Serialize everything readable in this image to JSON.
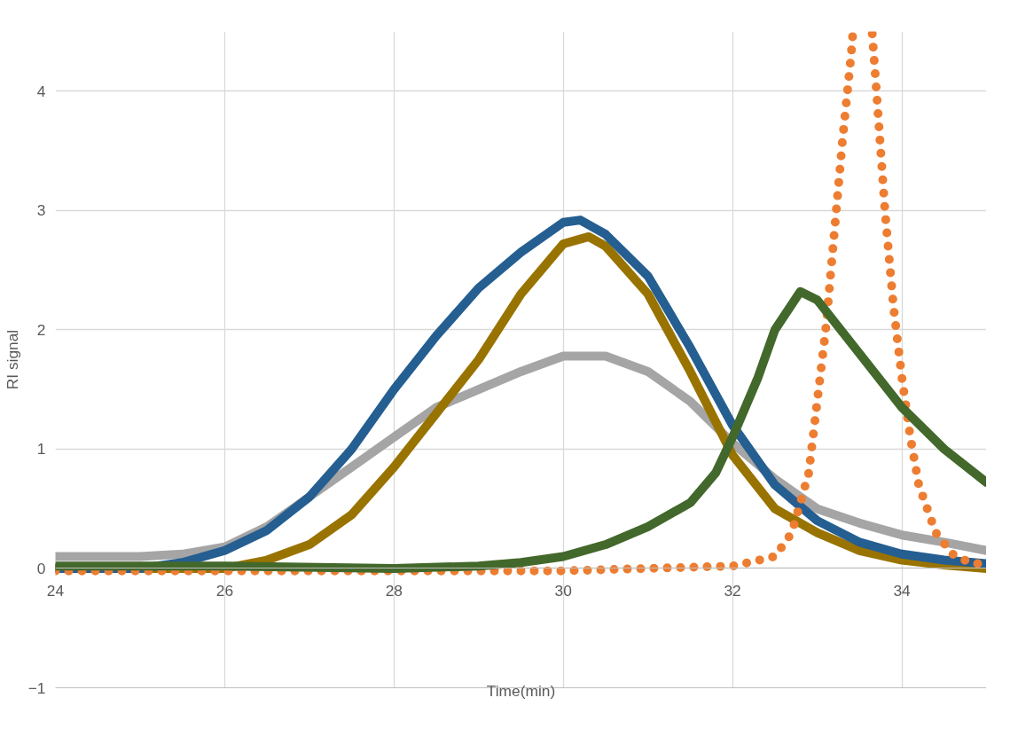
{
  "chart_data": {
    "type": "line",
    "xlabel": "Time(min)",
    "ylabel": "RI signal",
    "xlim": [
      24,
      35
    ],
    "ylim": [
      -1,
      4.5
    ],
    "xticks": [
      24,
      26,
      28,
      30,
      32,
      34
    ],
    "yticks": [
      -1,
      0,
      1,
      2,
      3,
      4
    ],
    "grid": true,
    "line_style": "solid",
    "series": [
      {
        "color": "#a5a5a5",
        "x": [
          24,
          25,
          25.5,
          26,
          26.5,
          27,
          27.5,
          28,
          28.5,
          29,
          29.5,
          30,
          30.5,
          31,
          31.5,
          32,
          32.5,
          33,
          33.5,
          34,
          34.5,
          35
        ],
        "values": [
          0.1,
          0.1,
          0.12,
          0.18,
          0.35,
          0.6,
          0.85,
          1.1,
          1.35,
          1.5,
          1.65,
          1.78,
          1.78,
          1.65,
          1.4,
          1.05,
          0.75,
          0.5,
          0.38,
          0.28,
          0.22,
          0.15
        ]
      },
      {
        "color": "#997300",
        "x": [
          24,
          26,
          26.5,
          27,
          27.5,
          28,
          28.5,
          29,
          29.5,
          30,
          30.3,
          30.5,
          31,
          31.5,
          32,
          32.5,
          33,
          33.5,
          34,
          34.5,
          35
        ],
        "values": [
          0,
          0,
          0.07,
          0.2,
          0.45,
          0.85,
          1.3,
          1.75,
          2.3,
          2.72,
          2.78,
          2.7,
          2.3,
          1.65,
          0.95,
          0.5,
          0.3,
          0.15,
          0.07,
          0.03,
          0
        ]
      },
      {
        "color": "#255e91",
        "x": [
          24,
          25,
          25.5,
          26,
          26.5,
          27,
          27.5,
          28,
          28.5,
          29,
          29.5,
          30,
          30.2,
          30.5,
          31,
          31.5,
          32,
          32.5,
          33,
          33.5,
          34,
          34.5,
          35
        ],
        "values": [
          0,
          0,
          0.05,
          0.15,
          0.32,
          0.6,
          1.0,
          1.5,
          1.95,
          2.35,
          2.65,
          2.9,
          2.92,
          2.8,
          2.45,
          1.85,
          1.2,
          0.7,
          0.4,
          0.22,
          0.12,
          0.07,
          0.04
        ]
      },
      {
        "color": "#ed7d31",
        "line_style": "dotted",
        "x": [
          24,
          30,
          31,
          32,
          32.5,
          32.7,
          32.9,
          33.0,
          33.1,
          33.2,
          33.3,
          33.4,
          33.42,
          33.55,
          33.65,
          33.7,
          33.8,
          33.9,
          34.0,
          34.1,
          34.2,
          34.4,
          34.6,
          34.8,
          35
        ],
        "values": [
          -0.02,
          -0.02,
          0,
          0.02,
          0.1,
          0.3,
          0.8,
          1.4,
          2.0,
          2.8,
          3.6,
          4.3,
          4.48,
          null,
          4.48,
          4.0,
          3.0,
          2.2,
          1.6,
          1.1,
          0.7,
          0.3,
          0.12,
          0.05,
          0.03
        ]
      },
      {
        "color": "#43682b",
        "x": [
          24,
          26,
          28,
          29,
          29.5,
          30,
          30.5,
          31,
          31.5,
          31.8,
          32,
          32.3,
          32.5,
          32.8,
          33,
          33.5,
          34,
          34.5,
          35
        ],
        "values": [
          0.02,
          0.02,
          0,
          0.02,
          0.05,
          0.1,
          0.2,
          0.35,
          0.55,
          0.8,
          1.1,
          1.6,
          2.0,
          2.32,
          2.25,
          1.8,
          1.35,
          1.0,
          0.72
        ]
      }
    ]
  }
}
